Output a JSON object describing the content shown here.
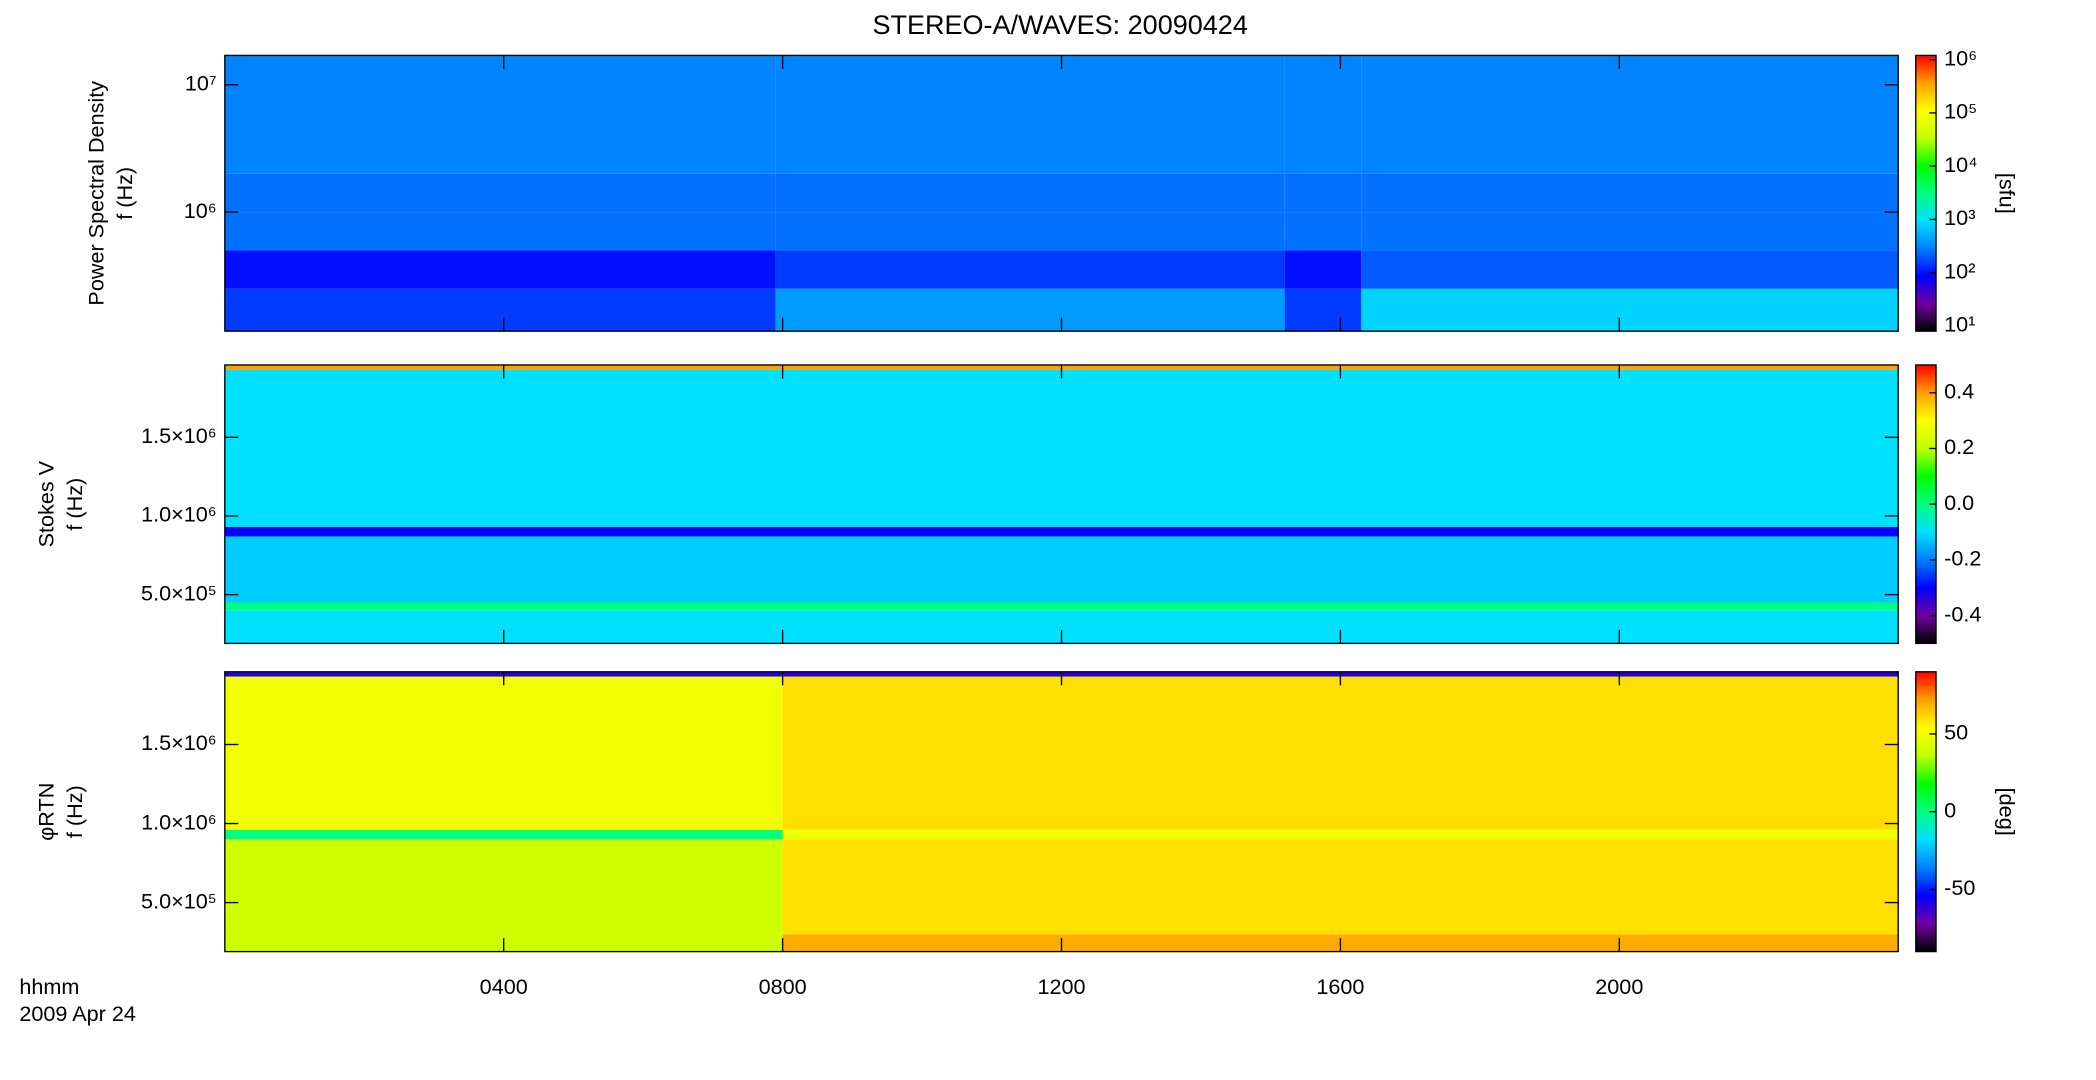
{
  "title": "STEREO-A/WAVES: 20090424",
  "time_axis": {
    "xlim": [
      0,
      24
    ],
    "xticks": [
      {
        "value": 4,
        "label": "0400"
      },
      {
        "value": 8,
        "label": "0800"
      },
      {
        "value": 12,
        "label": "1200"
      },
      {
        "value": 16,
        "label": "1600"
      },
      {
        "value": 20,
        "label": "2000"
      }
    ],
    "x_label": "hhmm",
    "date": "2009 Apr 24"
  },
  "colormap": [
    "#000000",
    "#7000a0",
    "#0000ff",
    "#0080ff",
    "#00e0ff",
    "#00ff80",
    "#00ff00",
    "#c0ff00",
    "#ffff00",
    "#ffa000",
    "#ff0000"
  ],
  "chart_data": [
    {
      "type": "heatmap",
      "y_label": [
        "Power Spectral Density",
        "f (Hz)"
      ],
      "colorbar_label": "[sfu]",
      "ylog": true,
      "ylim": [
        116000,
        17000000
      ],
      "yticks": [
        {
          "value": 1000000,
          "label": "10⁶"
        },
        {
          "value": 10000000,
          "label": "10⁷"
        }
      ],
      "clog": true,
      "clim": [
        8,
        1200000
      ],
      "cticks": [
        {
          "value": 10,
          "label": "10¹"
        },
        {
          "value": 100,
          "label": "10²"
        },
        {
          "value": 1000,
          "label": "10³"
        },
        {
          "value": 10000,
          "label": "10⁴"
        },
        {
          "value": 100000,
          "label": "10⁵"
        },
        {
          "value": 1000000,
          "label": "10⁶"
        }
      ],
      "xbins": [
        0,
        7.9,
        15.2,
        16.3,
        24
      ],
      "ybins": [
        116000,
        250000,
        500000,
        1000000,
        2000000,
        17000000
      ],
      "values": [
        [
          150,
          400,
          150,
          800
        ],
        [
          100,
          150,
          100,
          200
        ],
        [
          250,
          250,
          250,
          250
        ],
        [
          250,
          250,
          250,
          250
        ],
        [
          300,
          300,
          300,
          300
        ]
      ]
    },
    {
      "type": "heatmap",
      "y_label": [
        "Stokes V",
        "f (Hz)"
      ],
      "colorbar_label": null,
      "ylog": false,
      "ylim": [
        190000,
        1960000
      ],
      "yticks": [
        {
          "value": 500000,
          "label": "5.0×10⁵"
        },
        {
          "value": 1000000,
          "label": "1.0×10⁶"
        },
        {
          "value": 1500000,
          "label": "1.5×10⁶"
        }
      ],
      "clog": false,
      "clim": [
        -0.5,
        0.5
      ],
      "cticks": [
        -0.4,
        -0.2,
        {
          "value": 0,
          "label": "0.0"
        },
        0.2,
        0.4
      ],
      "xbins": [
        0,
        24
      ],
      "ybins": [
        190000,
        400000,
        450000,
        870000,
        930000,
        1930000,
        1960000
      ],
      "values": [
        [
          -0.1
        ],
        [
          0.0
        ],
        [
          -0.12
        ],
        [
          -0.3
        ],
        [
          -0.1
        ],
        [
          0.4
        ]
      ]
    },
    {
      "type": "heatmap",
      "y_label": [
        "φRTN",
        "f (Hz)"
      ],
      "colorbar_label": "[deg]",
      "ylog": false,
      "ylim": [
        190000,
        1960000
      ],
      "yticks": [
        {
          "value": 500000,
          "label": "5.0×10⁵"
        },
        {
          "value": 1000000,
          "label": "1.0×10⁶"
        },
        {
          "value": 1500000,
          "label": "1.5×10⁶"
        }
      ],
      "clog": false,
      "clim": [
        -90,
        90
      ],
      "cticks": [
        -50,
        0,
        50
      ],
      "xbins": [
        0,
        8,
        24
      ],
      "ybins": [
        190000,
        300000,
        900000,
        960000,
        1930000,
        1960000
      ],
      "values": [
        [
          40,
          70
        ],
        [
          40,
          60
        ],
        [
          0,
          50
        ],
        [
          50,
          60
        ],
        [
          -60,
          -60
        ]
      ]
    }
  ]
}
